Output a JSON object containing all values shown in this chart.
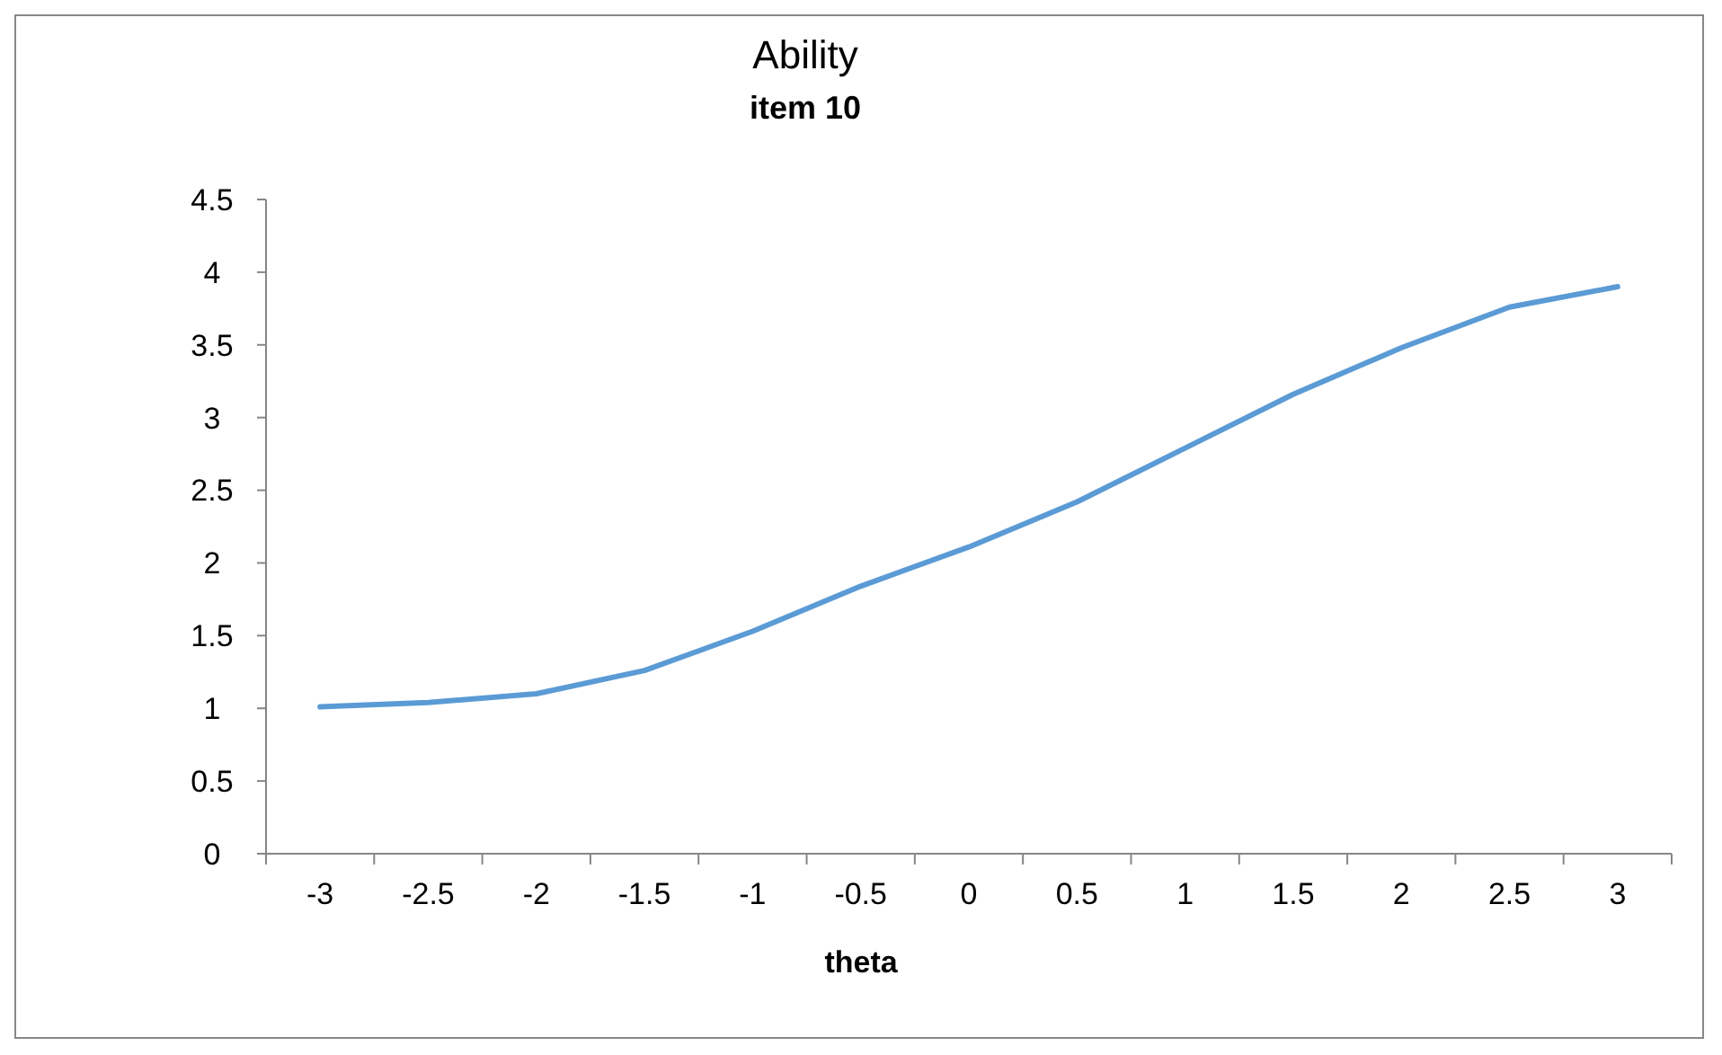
{
  "chart_data": {
    "type": "line",
    "title": "Ability",
    "subtitle": "item 10",
    "xlabel": "theta",
    "categories": [
      "-3",
      "-2.5",
      "-2",
      "-1.5",
      "-1",
      "-0.5",
      "0",
      "0.5",
      "1",
      "1.5",
      "2",
      "2.5",
      "3"
    ],
    "series": [
      {
        "color": "#5b9bd5",
        "values": [
          1.01,
          1.04,
          1.1,
          1.26,
          1.53,
          1.84,
          2.11,
          2.42,
          2.79,
          3.16,
          3.48,
          3.76,
          3.9
        ]
      }
    ],
    "ylim": [
      0,
      4.5
    ],
    "yticks": [
      0,
      0.5,
      1,
      1.5,
      2,
      2.5,
      3,
      3.5,
      4,
      4.5
    ],
    "grid": false,
    "marker": "none",
    "line_style": "solid"
  }
}
